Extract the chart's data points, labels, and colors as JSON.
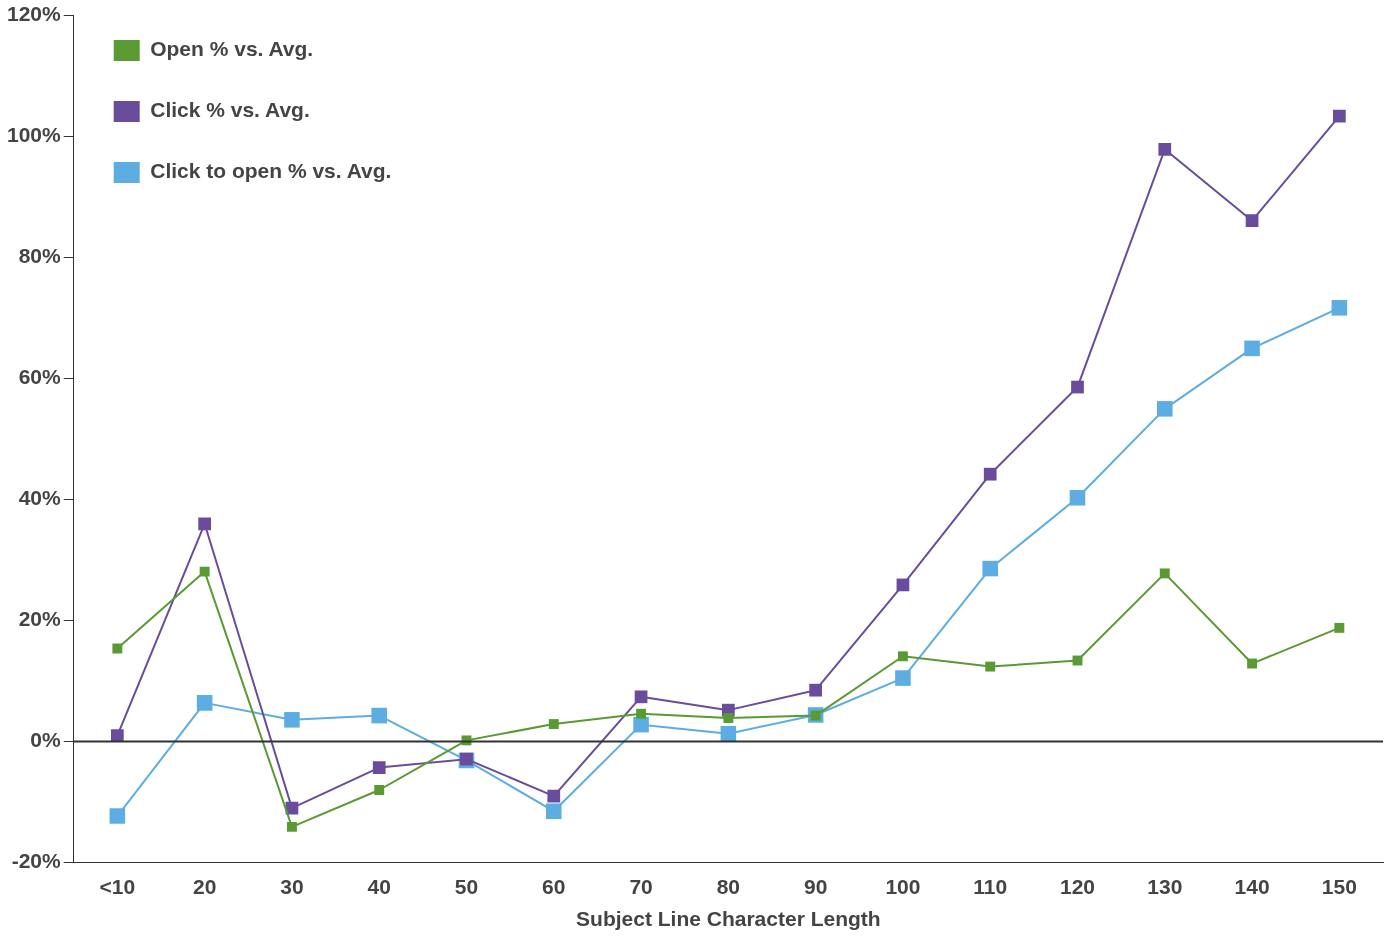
{
  "chart_data": {
    "type": "line",
    "xlabel": "Subject Line Character Length",
    "categories": [
      "<10",
      "20",
      "30",
      "40",
      "50",
      "60",
      "70",
      "80",
      "90",
      "100",
      "110",
      "120",
      "130",
      "140",
      "150"
    ],
    "series": [
      {
        "name": "Open % vs. Avg.",
        "color": "#5a9a32",
        "values": [
          15.4,
          28.1,
          -14.1,
          -8.0,
          0.2,
          2.9,
          4.6,
          3.9,
          4.3,
          14.1,
          12.4,
          13.4,
          27.8,
          12.9,
          18.8
        ]
      },
      {
        "name": "Click % vs. Avg.",
        "color": "#6a4c9c",
        "values": [
          1.0,
          36.0,
          -11.0,
          -4.3,
          -2.9,
          -9.0,
          7.4,
          5.2,
          8.5,
          25.9,
          44.2,
          58.6,
          97.9,
          86.1,
          103.4
        ]
      },
      {
        "name": "Click to open % vs. Avg.",
        "color": "#5dade2",
        "values": [
          -12.3,
          6.4,
          3.6,
          4.3,
          -3.1,
          -11.5,
          2.8,
          1.3,
          4.4,
          10.5,
          28.6,
          40.3,
          55.0,
          65.0,
          71.7
        ]
      }
    ],
    "ylim": [
      -20,
      120
    ],
    "yticks": [
      {
        "value": -20,
        "label": "-20%"
      },
      {
        "value": 0,
        "label": "0%"
      },
      {
        "value": 20,
        "label": "20%"
      },
      {
        "value": 40,
        "label": "40%"
      },
      {
        "value": 60,
        "label": "60%"
      },
      {
        "value": 80,
        "label": "80%"
      },
      {
        "value": 100,
        "label": "100%"
      },
      {
        "value": 120,
        "label": "120%"
      }
    ],
    "ref_lines": [
      {
        "axis": "y",
        "value": 0,
        "color": "#333333"
      }
    ],
    "grid": false,
    "legend": "top left",
    "marker": "square",
    "line_style": "solid"
  }
}
